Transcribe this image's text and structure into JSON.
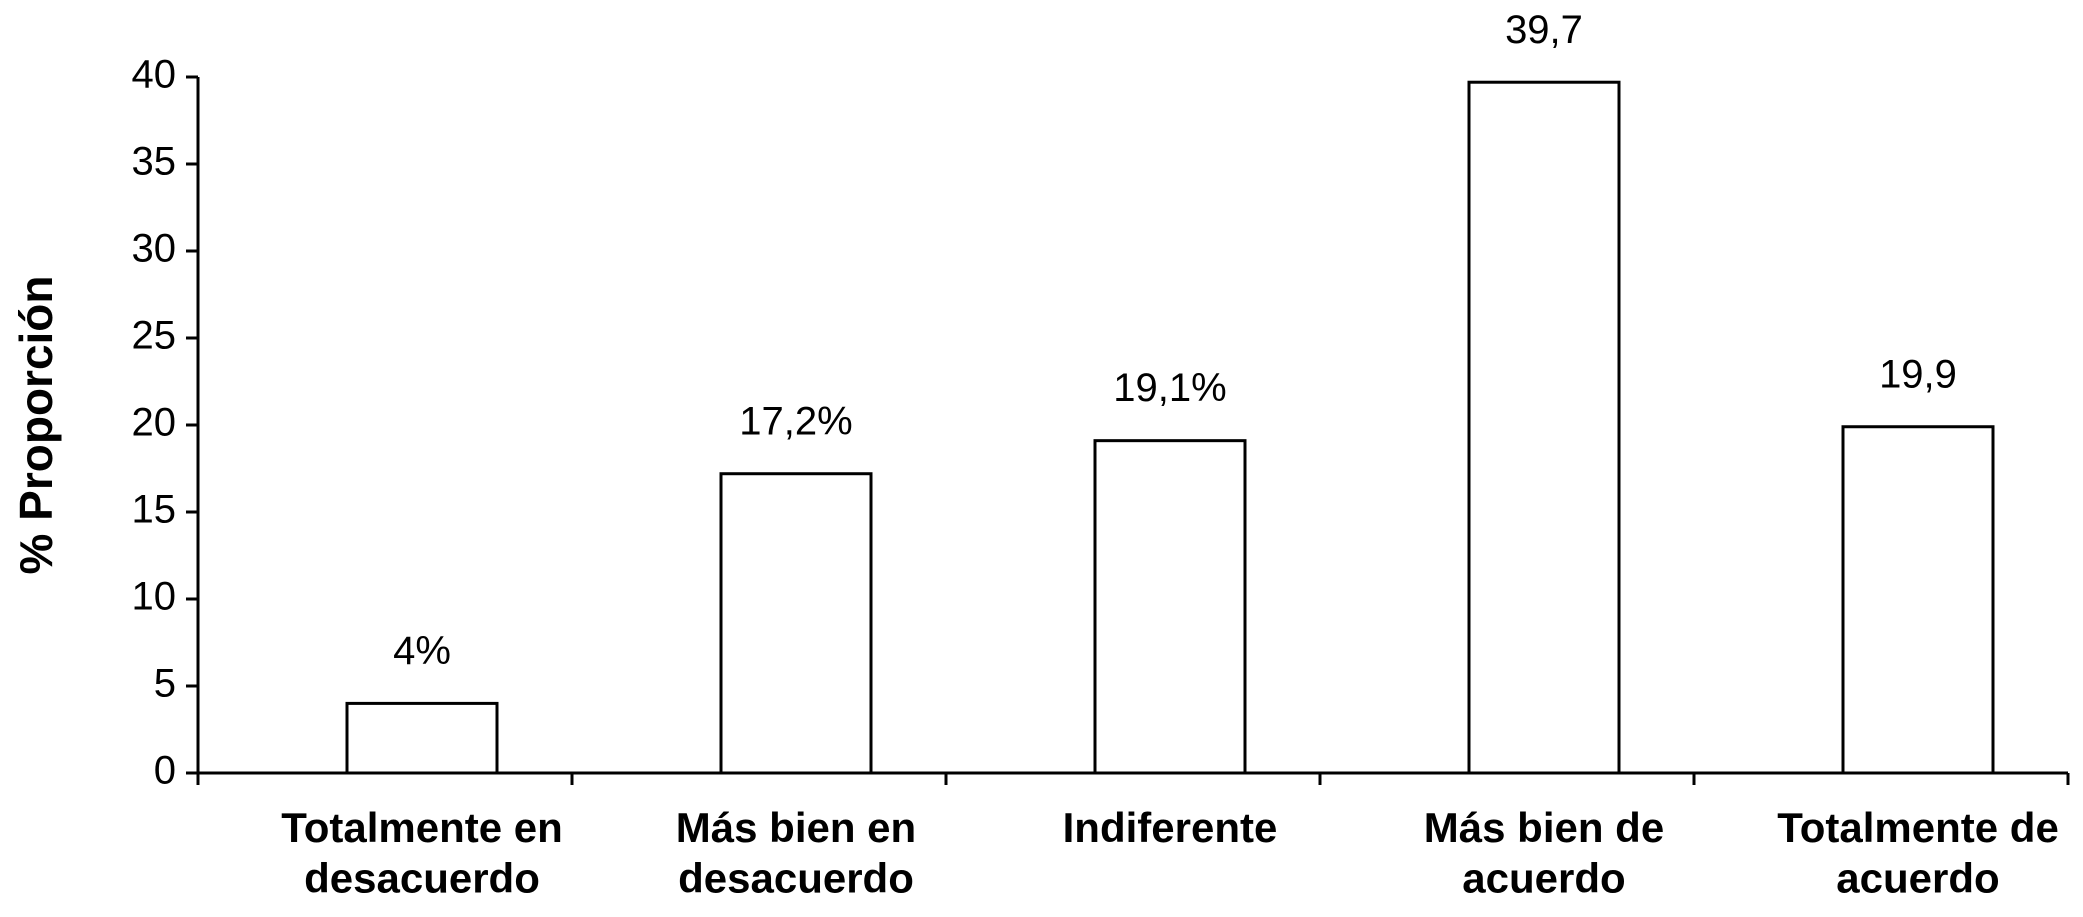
{
  "chart_data": {
    "type": "bar",
    "y_label": "% Proporción",
    "categories": [
      "Totalmente en\ndesacuerdo",
      "Más bien en\ndesacuerdo",
      "Indiferente",
      "Más bien de\nacuerdo",
      "Totalmente de\nacuerdo"
    ],
    "values": [
      4,
      17.2,
      19.1,
      39.7,
      19.9
    ],
    "value_labels": [
      "4%",
      "17,2%",
      "19,1%",
      "39,7",
      "19,9"
    ],
    "color": "#ffffff",
    "ylim": [
      0,
      40
    ],
    "yticks": [
      0,
      5,
      10,
      15,
      20,
      25,
      30,
      35,
      40
    ],
    "grid": false
  }
}
